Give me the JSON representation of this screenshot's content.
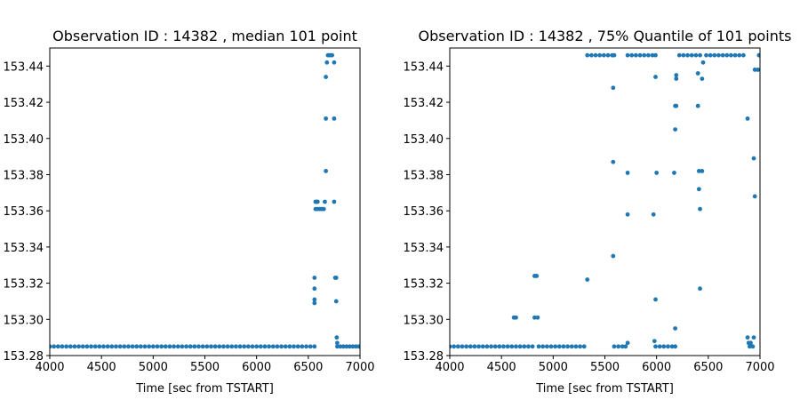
{
  "chart_data": [
    {
      "type": "scatter",
      "title": "Observation ID : 14382 , median 101 point",
      "xlabel": "Time [sec from TSTART]",
      "color": "#1f77b4",
      "xlim": [
        4000,
        7000
      ],
      "ylim": [
        153.28,
        153.45
      ],
      "xticks": [
        4000,
        4500,
        5000,
        5500,
        6000,
        6500,
        7000
      ],
      "yticks": [
        153.28,
        {
          "value": 153.3,
          "label": "153.30"
        },
        153.32,
        153.34,
        153.36,
        153.38,
        {
          "value": 153.4,
          "label": "153.40"
        },
        153.42,
        153.44
      ],
      "x": [
        4000,
        4040,
        4080,
        4120,
        4160,
        4200,
        4240,
        4280,
        4320,
        4360,
        4400,
        4440,
        4480,
        4520,
        4560,
        4600,
        4640,
        4680,
        4720,
        4760,
        4800,
        4840,
        4880,
        4920,
        4960,
        5000,
        5040,
        5080,
        5120,
        5160,
        5200,
        5240,
        5280,
        5320,
        5360,
        5400,
        5440,
        5480,
        5520,
        5560,
        5600,
        5640,
        5680,
        5720,
        5760,
        5800,
        5840,
        5880,
        5920,
        5960,
        6000,
        6040,
        6080,
        6120,
        6160,
        6200,
        6240,
        6280,
        6320,
        6360,
        6400,
        6440,
        6480,
        6520,
        6560,
        6560,
        6560,
        6560,
        6560,
        6570,
        6580,
        6590,
        6570,
        6590,
        6610,
        6630,
        6650,
        6660,
        6670,
        6670,
        6670,
        6680,
        6690,
        6710,
        6730,
        6750,
        6750,
        6750,
        6760,
        6770,
        6770,
        6775,
        6780,
        6780,
        6810,
        6840,
        6870,
        6900,
        6930,
        6960,
        6990
      ],
      "values": [
        153.285,
        153.285,
        153.285,
        153.285,
        153.285,
        153.285,
        153.285,
        153.285,
        153.285,
        153.285,
        153.285,
        153.285,
        153.285,
        153.285,
        153.285,
        153.285,
        153.285,
        153.285,
        153.285,
        153.285,
        153.285,
        153.285,
        153.285,
        153.285,
        153.285,
        153.285,
        153.285,
        153.285,
        153.285,
        153.285,
        153.285,
        153.285,
        153.285,
        153.285,
        153.285,
        153.285,
        153.285,
        153.285,
        153.285,
        153.285,
        153.285,
        153.285,
        153.285,
        153.285,
        153.285,
        153.285,
        153.285,
        153.285,
        153.285,
        153.285,
        153.285,
        153.285,
        153.285,
        153.285,
        153.285,
        153.285,
        153.285,
        153.285,
        153.285,
        153.285,
        153.285,
        153.285,
        153.285,
        153.285,
        153.285,
        153.323,
        153.317,
        153.311,
        153.309,
        153.365,
        153.365,
        153.365,
        153.361,
        153.361,
        153.361,
        153.361,
        153.361,
        153.365,
        153.382,
        153.411,
        153.434,
        153.442,
        153.446,
        153.446,
        153.446,
        153.442,
        153.411,
        153.365,
        153.323,
        153.323,
        153.31,
        153.29,
        153.287,
        153.285,
        153.285,
        153.285,
        153.285,
        153.285,
        153.285,
        153.285,
        153.285
      ]
    },
    {
      "type": "scatter",
      "title": "Observation ID : 14382 , 75% Quantile of 101 points",
      "xlabel": "Time [sec from TSTART]",
      "color": "#1f77b4",
      "xlim": [
        4000,
        7000
      ],
      "ylim": [
        153.28,
        153.45
      ],
      "xticks": [
        4000,
        4500,
        5000,
        5500,
        6000,
        6500,
        7000
      ],
      "yticks": [
        153.28,
        {
          "value": 153.3,
          "label": "153.30"
        },
        153.32,
        153.34,
        153.36,
        153.38,
        {
          "value": 153.4,
          "label": "153.40"
        },
        153.42,
        153.44
      ],
      "x": [
        4000,
        4040,
        4080,
        4120,
        4160,
        4200,
        4240,
        4280,
        4320,
        4360,
        4400,
        4440,
        4480,
        4520,
        4560,
        4600,
        4640,
        4620,
        4640,
        4680,
        4720,
        4760,
        4800,
        4820,
        4840,
        4820,
        4850,
        4860,
        4900,
        4940,
        4980,
        5020,
        5060,
        5100,
        5140,
        5180,
        5220,
        5260,
        5300,
        5330,
        5330,
        5370,
        5410,
        5450,
        5490,
        5530,
        5570,
        5590,
        5580,
        5580,
        5580,
        5590,
        5630,
        5670,
        5700,
        5720,
        5720,
        5720,
        5720,
        5760,
        5800,
        5840,
        5880,
        5920,
        5960,
        5990,
        5990,
        6000,
        5970,
        5990,
        5980,
        5990,
        6030,
        6070,
        6110,
        6150,
        6180,
        6170,
        6180,
        6190,
        6180,
        6180,
        6190,
        6190,
        6220,
        6260,
        6300,
        6340,
        6380,
        6420,
        6400,
        6400,
        6410,
        6410,
        6440,
        6420,
        6420,
        6440,
        6450,
        6480,
        6520,
        6560,
        6600,
        6640,
        6680,
        6720,
        6760,
        6800,
        6840,
        6880,
        6880,
        6890,
        6910,
        6900,
        6930,
        6940,
        6940,
        6950,
        6950,
        6980,
        6990
      ],
      "values": [
        153.285,
        153.285,
        153.285,
        153.285,
        153.285,
        153.285,
        153.285,
        153.285,
        153.285,
        153.285,
        153.285,
        153.285,
        153.285,
        153.285,
        153.285,
        153.285,
        153.285,
        153.301,
        153.301,
        153.285,
        153.285,
        153.285,
        153.285,
        153.324,
        153.324,
        153.301,
        153.301,
        153.285,
        153.285,
        153.285,
        153.285,
        153.285,
        153.285,
        153.285,
        153.285,
        153.285,
        153.285,
        153.285,
        153.285,
        153.322,
        153.446,
        153.446,
        153.446,
        153.446,
        153.446,
        153.446,
        153.446,
        153.446,
        153.428,
        153.387,
        153.335,
        153.285,
        153.285,
        153.285,
        153.285,
        153.287,
        153.381,
        153.358,
        153.446,
        153.446,
        153.446,
        153.446,
        153.446,
        153.446,
        153.446,
        153.446,
        153.434,
        153.381,
        153.358,
        153.311,
        153.288,
        153.285,
        153.285,
        153.285,
        153.285,
        153.285,
        153.285,
        153.381,
        153.418,
        153.418,
        153.405,
        153.295,
        153.435,
        153.433,
        153.446,
        153.446,
        153.446,
        153.446,
        153.446,
        153.446,
        153.436,
        153.418,
        153.372,
        153.382,
        153.382,
        153.361,
        153.317,
        153.433,
        153.442,
        153.446,
        153.446,
        153.446,
        153.446,
        153.446,
        153.446,
        153.446,
        153.446,
        153.446,
        153.446,
        153.411,
        153.29,
        153.287,
        153.287,
        153.285,
        153.285,
        153.29,
        153.389,
        153.368,
        153.438,
        153.438,
        153.446
      ]
    }
  ]
}
